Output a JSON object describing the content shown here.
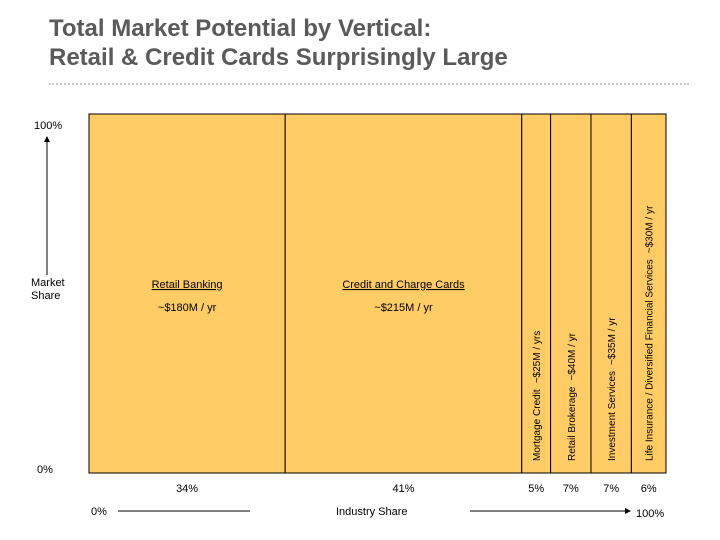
{
  "title_line1": "Total Market Potential by Vertical:",
  "title_line2": "Retail & Credit Cards Surprisingly Large",
  "y_axis": {
    "top_label": "100%",
    "bottom_label": "0%",
    "label_line1": "Market",
    "label_line2": "Share"
  },
  "x_axis": {
    "left_label": "0%",
    "right_label": "100%",
    "label": "Industry Share"
  },
  "colors": {
    "fill": "#FFCC66",
    "border": "#000000",
    "background": "#FFFFFF"
  },
  "chart_data": {
    "type": "marimekko",
    "title": "Total Market Potential by Vertical: Retail & Credit Cards Surprisingly Large",
    "xlabel": "Industry Share",
    "ylabel": "Market Share",
    "ylim": [
      "0%",
      "100%"
    ],
    "xlim": [
      "0%",
      "100%"
    ],
    "categories": [
      {
        "name": "Retail Banking",
        "value": "~$180M / yr",
        "share": 34,
        "share_label": "34%",
        "orientation": "horizontal"
      },
      {
        "name": "Credit and Charge Cards",
        "value": "~$215M / yr",
        "share": 41,
        "share_label": "41%",
        "orientation": "horizontal"
      },
      {
        "name": "Mortgage Credit",
        "value": "~$25M / yrs",
        "share": 5,
        "share_label": "5%",
        "orientation": "vertical"
      },
      {
        "name": "Retail Brokerage",
        "value": "~$40M / yr",
        "share": 7,
        "share_label": "7%",
        "orientation": "vertical"
      },
      {
        "name": "Investment Services",
        "value": "~$35M / yr",
        "share": 7,
        "share_label": "7%",
        "orientation": "vertical"
      },
      {
        "name": "Life Insurance / Diversified Financial Services",
        "value": "~$30M / yr",
        "share": 6,
        "share_label": "6%",
        "orientation": "vertical"
      }
    ]
  }
}
